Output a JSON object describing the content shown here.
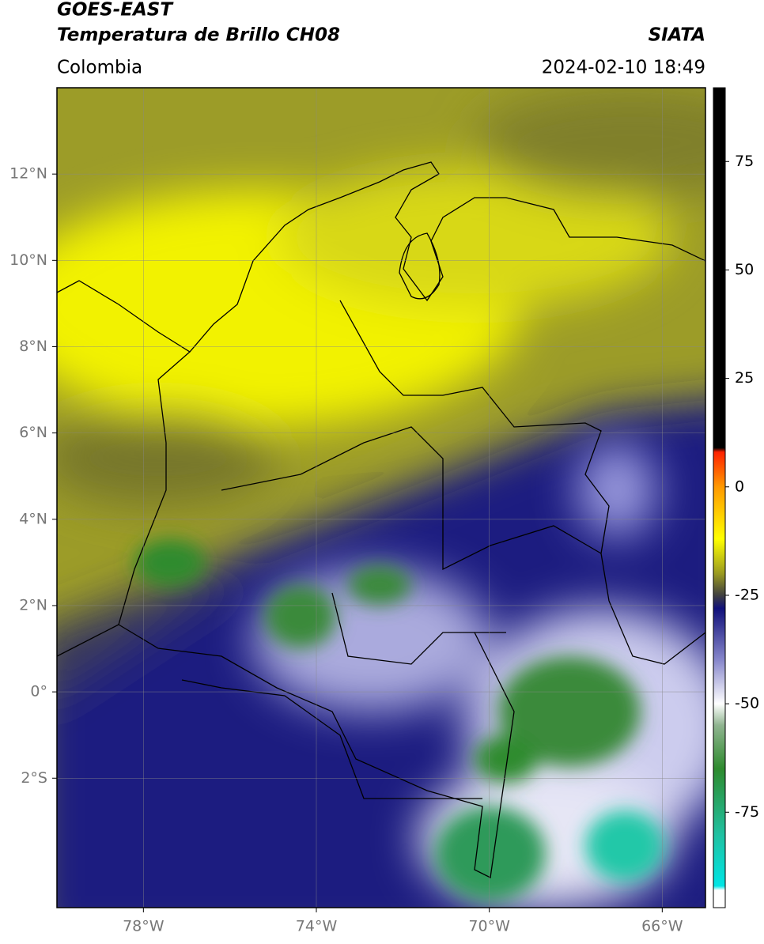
{
  "header": {
    "title": "GOES-EAST",
    "subtitle": "Temperatura de Brillo CH08",
    "region": "Colombia",
    "source": "SIATA",
    "datetime": "2024-02-10 18:49"
  },
  "map": {
    "lonlim": [
      -80,
      -65
    ],
    "latlim": [
      -5,
      14
    ],
    "grid": true,
    "xticks": [
      {
        "value": -78,
        "label": "78°W"
      },
      {
        "value": -74,
        "label": "74°W"
      },
      {
        "value": -70,
        "label": "70°W"
      },
      {
        "value": -66,
        "label": "66°W"
      }
    ],
    "yticks": [
      {
        "value": 12,
        "label": "12°N"
      },
      {
        "value": 10,
        "label": "10°N"
      },
      {
        "value": 8,
        "label": "8°N"
      },
      {
        "value": 6,
        "label": "6°N"
      },
      {
        "value": 4,
        "label": "4°N"
      },
      {
        "value": 2,
        "label": "2°N"
      },
      {
        "value": 0,
        "label": "0°"
      },
      {
        "value": -2,
        "label": "2°S"
      }
    ]
  },
  "colorbar": {
    "lim": [
      -97,
      92
    ],
    "ticks": [
      75,
      50,
      25,
      0,
      -25,
      -50,
      -75
    ],
    "stops": [
      {
        "value": -97,
        "color": "#ffffff"
      },
      {
        "value": -93,
        "color": "#ffffff"
      },
      {
        "value": -92,
        "color": "#00e5e5"
      },
      {
        "value": -80,
        "color": "#20c0a0"
      },
      {
        "value": -65,
        "color": "#2e8b2e"
      },
      {
        "value": -55,
        "color": "#8fb48f"
      },
      {
        "value": -50,
        "color": "#ffffff"
      },
      {
        "value": -40,
        "color": "#8888cc"
      },
      {
        "value": -28,
        "color": "#10107a"
      },
      {
        "value": -25,
        "color": "#404040"
      },
      {
        "value": -20,
        "color": "#9a9a20"
      },
      {
        "value": -12,
        "color": "#ffff00"
      },
      {
        "value": 0,
        "color": "#ff9900"
      },
      {
        "value": 8,
        "color": "#ff2200"
      },
      {
        "value": 9,
        "color": "#000000"
      },
      {
        "value": 92,
        "color": "#000000"
      }
    ]
  }
}
